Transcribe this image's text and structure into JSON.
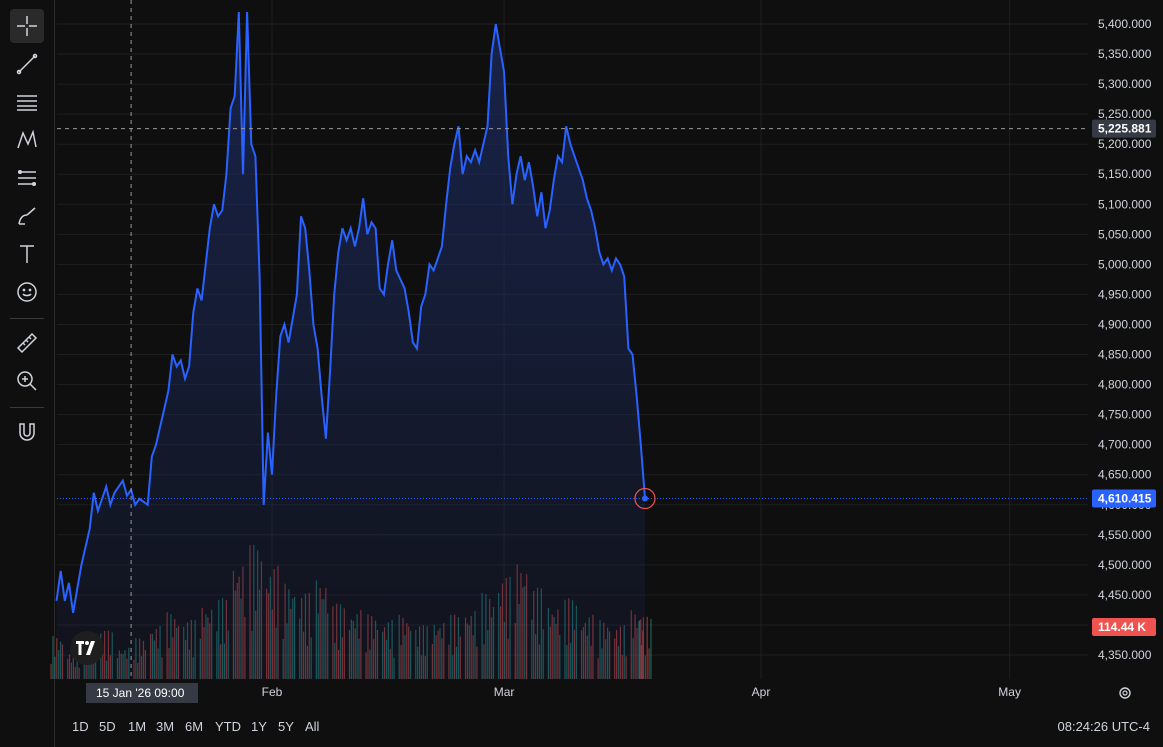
{
  "colors": {
    "background": "#0f0f0f",
    "grid": "#1f1f1f",
    "line": "#2962ff",
    "area_top": "#1b2a5e",
    "volume_up": "#26a69a",
    "volume_down": "#ef5350",
    "text": "#d1d4dc",
    "last_price_badge": "#2962ff",
    "volume_badge": "#ef5350",
    "crosshair_badge": "#363a45",
    "last_point_ring": "#ef5350"
  },
  "toolbar": {
    "icons": [
      "crosshair-icon",
      "trend-line-icon",
      "horizontal-lines-icon",
      "pattern-icon",
      "measure-lines-icon",
      "brush-icon",
      "text-icon",
      "emoji-icon",
      "ruler-icon",
      "zoom-in-icon",
      "magnet-icon"
    ]
  },
  "time_axis": {
    "labels": [
      "Feb",
      "Mar",
      "Apr",
      "May"
    ],
    "crosshair_label": "15 Jan '26   09:00"
  },
  "badges": {
    "crosshair_price": "5,225.881",
    "last_price": "4,610.415",
    "volume": "114.44 K"
  },
  "ranges": [
    "1D",
    "5D",
    "1M",
    "3M",
    "6M",
    "YTD",
    "1Y",
    "5Y",
    "All"
  ],
  "clock": "08:24:26 UTC-4",
  "chart_data": {
    "type": "area",
    "ylim": [
      4320,
      5420
    ],
    "y_ticks": [
      5400,
      5350,
      5300,
      5250,
      5200,
      5150,
      5100,
      5050,
      5000,
      4950,
      4900,
      4850,
      4800,
      4750,
      4700,
      4650,
      4600,
      4550,
      4500,
      4450,
      4400,
      4350
    ],
    "y_tick_labels": [
      "5,400.000",
      "5,350.000",
      "5,300.000",
      "5,250.000",
      "5,200.000",
      "5,150.000",
      "5,100.000",
      "5,050.000",
      "5,000.000",
      "4,950.000",
      "4,900.000",
      "4,850.000",
      "4,800.000",
      "4,750.000",
      "4,700.000",
      "4,650.000",
      "4,600.000",
      "4,550.000",
      "4,500.000",
      "4,450.000",
      "4,400.000",
      "4,350.000"
    ],
    "x_ticks": [
      {
        "label": "Feb",
        "date": "2026-02-01"
      },
      {
        "label": "Mar",
        "date": "2026-03-01"
      },
      {
        "label": "Apr",
        "date": "2026-04-01"
      },
      {
        "label": "May",
        "date": "2026-05-01"
      }
    ],
    "series": [
      {
        "points": [
          [
            "2026-01-06",
            4440
          ],
          [
            "2026-01-06",
            4490
          ],
          [
            "2026-01-07",
            4440
          ],
          [
            "2026-01-07",
            4470
          ],
          [
            "2026-01-08",
            4420
          ],
          [
            "2026-01-08",
            4460
          ],
          [
            "2026-01-09",
            4500
          ],
          [
            "2026-01-10",
            4560
          ],
          [
            "2026-01-10",
            4620
          ],
          [
            "2026-01-11",
            4590
          ],
          [
            "2026-01-11",
            4610
          ],
          [
            "2026-01-12",
            4630
          ],
          [
            "2026-01-12",
            4600
          ],
          [
            "2026-01-13",
            4620
          ],
          [
            "2026-01-14",
            4640
          ],
          [
            "2026-01-14",
            4615
          ],
          [
            "2026-01-15",
            4625
          ],
          [
            "2026-01-15",
            4600
          ],
          [
            "2026-01-16",
            4610
          ],
          [
            "2026-01-17",
            4600
          ],
          [
            "2026-01-17",
            4680
          ],
          [
            "2026-01-18",
            4700
          ],
          [
            "2026-01-19",
            4760
          ],
          [
            "2026-01-19",
            4790
          ],
          [
            "2026-01-20",
            4850
          ],
          [
            "2026-01-20",
            4830
          ],
          [
            "2026-01-21",
            4840
          ],
          [
            "2026-01-21",
            4810
          ],
          [
            "2026-01-22",
            4830
          ],
          [
            "2026-01-22",
            4920
          ],
          [
            "2026-01-23",
            4960
          ],
          [
            "2026-01-23",
            4940
          ],
          [
            "2026-01-24",
            5000
          ],
          [
            "2026-01-24",
            5060
          ],
          [
            "2026-01-25",
            5100
          ],
          [
            "2026-01-25",
            5080
          ],
          [
            "2026-01-26",
            5090
          ],
          [
            "2026-01-26",
            5150
          ],
          [
            "2026-01-27",
            5260
          ],
          [
            "2026-01-27",
            5280
          ],
          [
            "2026-01-28",
            5420
          ],
          [
            "2026-01-28",
            5150
          ],
          [
            "2026-01-29",
            5420
          ],
          [
            "2026-01-29",
            5200
          ],
          [
            "2026-01-30",
            5180
          ],
          [
            "2026-01-30",
            4980
          ],
          [
            "2026-01-31",
            4600
          ],
          [
            "2026-01-31",
            4720
          ],
          [
            "2026-02-01",
            4650
          ],
          [
            "2026-02-01",
            4780
          ],
          [
            "2026-02-02",
            4880
          ],
          [
            "2026-02-02",
            4900
          ],
          [
            "2026-02-03",
            4870
          ],
          [
            "2026-02-04",
            4950
          ],
          [
            "2026-02-04",
            5080
          ],
          [
            "2026-02-05",
            5060
          ],
          [
            "2026-02-05",
            4990
          ],
          [
            "2026-02-06",
            4900
          ],
          [
            "2026-02-06",
            4860
          ],
          [
            "2026-02-07",
            4780
          ],
          [
            "2026-02-07",
            4710
          ],
          [
            "2026-02-08",
            4820
          ],
          [
            "2026-02-08",
            4950
          ],
          [
            "2026-02-09",
            5020
          ],
          [
            "2026-02-09",
            5060
          ],
          [
            "2026-02-10",
            5040
          ],
          [
            "2026-02-10",
            5060
          ],
          [
            "2026-02-11",
            5030
          ],
          [
            "2026-02-11",
            5060
          ],
          [
            "2026-02-12",
            5110
          ],
          [
            "2026-02-12",
            5050
          ],
          [
            "2026-02-13",
            5070
          ],
          [
            "2026-02-13",
            5060
          ],
          [
            "2026-02-14",
            4960
          ],
          [
            "2026-02-14",
            4950
          ],
          [
            "2026-02-15",
            5000
          ],
          [
            "2026-02-15",
            5040
          ],
          [
            "2026-02-16",
            4990
          ],
          [
            "2026-02-17",
            4960
          ],
          [
            "2026-02-17",
            4920
          ],
          [
            "2026-02-18",
            4870
          ],
          [
            "2026-02-18",
            4860
          ],
          [
            "2026-02-19",
            4930
          ],
          [
            "2026-02-19",
            4950
          ],
          [
            "2026-02-20",
            5000
          ],
          [
            "2026-02-20",
            4990
          ],
          [
            "2026-02-21",
            5010
          ],
          [
            "2026-02-21",
            5030
          ],
          [
            "2026-02-22",
            5100
          ],
          [
            "2026-02-22",
            5160
          ],
          [
            "2026-02-23",
            5200
          ],
          [
            "2026-02-23",
            5230
          ],
          [
            "2026-02-24",
            5150
          ],
          [
            "2026-02-24",
            5180
          ],
          [
            "2026-02-25",
            5170
          ],
          [
            "2026-02-25",
            5190
          ],
          [
            "2026-02-26",
            5170
          ],
          [
            "2026-02-26",
            5200
          ],
          [
            "2026-02-27",
            5230
          ],
          [
            "2026-02-27",
            5350
          ],
          [
            "2026-02-28",
            5400
          ],
          [
            "2026-02-28",
            5360
          ],
          [
            "2026-03-01",
            5320
          ],
          [
            "2026-03-01",
            5180
          ],
          [
            "2026-03-02",
            5100
          ],
          [
            "2026-03-02",
            5150
          ],
          [
            "2026-03-03",
            5180
          ],
          [
            "2026-03-03",
            5140
          ],
          [
            "2026-03-04",
            5170
          ],
          [
            "2026-03-04",
            5130
          ],
          [
            "2026-03-05",
            5080
          ],
          [
            "2026-03-05",
            5120
          ],
          [
            "2026-03-06",
            5060
          ],
          [
            "2026-03-06",
            5090
          ],
          [
            "2026-03-07",
            5140
          ],
          [
            "2026-03-07",
            5180
          ],
          [
            "2026-03-08",
            5170
          ],
          [
            "2026-03-08",
            5230
          ],
          [
            "2026-03-09",
            5200
          ],
          [
            "2026-03-09",
            5180
          ],
          [
            "2026-03-10",
            5160
          ],
          [
            "2026-03-10",
            5140
          ],
          [
            "2026-03-11",
            5110
          ],
          [
            "2026-03-11",
            5090
          ],
          [
            "2026-03-12",
            5060
          ],
          [
            "2026-03-12",
            5020
          ],
          [
            "2026-03-13",
            5000
          ],
          [
            "2026-03-13",
            5010
          ],
          [
            "2026-03-14",
            4990
          ],
          [
            "2026-03-14",
            5010
          ],
          [
            "2026-03-15",
            5000
          ],
          [
            "2026-03-15",
            4980
          ],
          [
            "2026-03-16",
            4860
          ],
          [
            "2026-03-16",
            4850
          ],
          [
            "2026-03-17",
            4780
          ],
          [
            "2026-03-17",
            4700
          ],
          [
            "2026-03-18",
            4610.415
          ]
        ]
      }
    ],
    "volume": {
      "max": 130,
      "note_bars": [
        [
          "2026-01-06",
          40,
          "up"
        ],
        [
          "2026-01-08",
          25,
          "down"
        ],
        [
          "2026-01-10",
          35,
          "up"
        ],
        [
          "2026-01-12",
          45,
          "down"
        ],
        [
          "2026-01-14",
          30,
          "up"
        ],
        [
          "2026-01-16",
          38,
          "down"
        ],
        [
          "2026-01-18",
          50,
          "up"
        ],
        [
          "2026-01-20",
          62,
          "down"
        ],
        [
          "2026-01-22",
          55,
          "up"
        ],
        [
          "2026-01-24",
          70,
          "down"
        ],
        [
          "2026-01-26",
          75,
          "up"
        ],
        [
          "2026-01-28",
          110,
          "down"
        ],
        [
          "2026-01-30",
          125,
          "up"
        ],
        [
          "2026-02-01",
          105,
          "down"
        ],
        [
          "2026-02-03",
          90,
          "up"
        ],
        [
          "2026-02-05",
          80,
          "down"
        ],
        [
          "2026-02-07",
          95,
          "up"
        ],
        [
          "2026-02-09",
          70,
          "down"
        ],
        [
          "2026-02-11",
          65,
          "up"
        ],
        [
          "2026-02-13",
          60,
          "down"
        ],
        [
          "2026-02-15",
          55,
          "up"
        ],
        [
          "2026-02-17",
          60,
          "down"
        ],
        [
          "2026-02-19",
          50,
          "up"
        ],
        [
          "2026-02-21",
          55,
          "down"
        ],
        [
          "2026-02-23",
          60,
          "up"
        ],
        [
          "2026-02-25",
          65,
          "down"
        ],
        [
          "2026-02-27",
          80,
          "up"
        ],
        [
          "2026-03-01",
          95,
          "down"
        ],
        [
          "2026-03-03",
          110,
          "down"
        ],
        [
          "2026-03-05",
          85,
          "up"
        ],
        [
          "2026-03-07",
          70,
          "down"
        ],
        [
          "2026-03-09",
          75,
          "up"
        ],
        [
          "2026-03-11",
          60,
          "down"
        ],
        [
          "2026-03-13",
          55,
          "up"
        ],
        [
          "2026-03-15",
          50,
          "down"
        ],
        [
          "2026-03-17",
          65,
          "down"
        ],
        [
          "2026-03-18",
          58,
          "down"
        ]
      ]
    },
    "last_value": 4610.415,
    "crosshair": {
      "date": "2026-01-15",
      "value": 5225.881
    }
  }
}
